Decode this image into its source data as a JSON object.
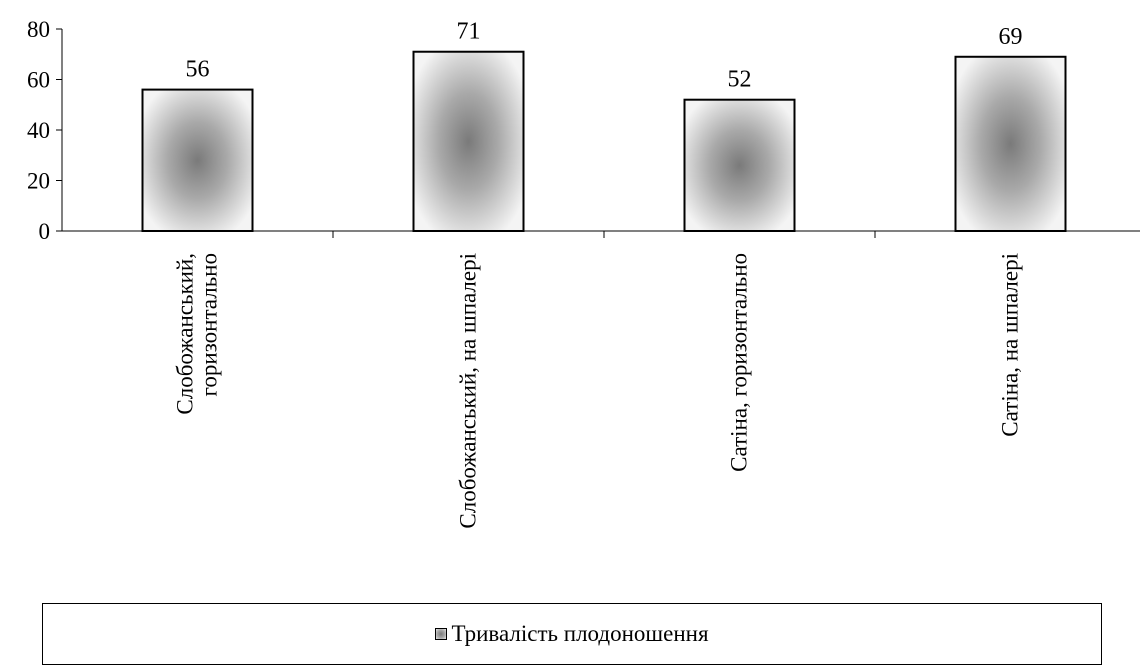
{
  "chart_data": {
    "type": "bar",
    "categories": [
      [
        "Слобожанський,",
        "горизонтально"
      ],
      [
        "Слобожанський, на шпалері"
      ],
      [
        "Сатіна, горизонтально"
      ],
      [
        "Сатіна, на шпалері"
      ]
    ],
    "series": [
      {
        "name": "Тривалість плодоношення",
        "values": [
          56,
          71,
          52,
          69
        ]
      }
    ],
    "data_labels": [
      "56",
      "71",
      "52",
      "69"
    ],
    "ylim": [
      0,
      80
    ],
    "yticks": [
      "0",
      "20",
      "40",
      "60",
      "80"
    ],
    "grid": false,
    "legend_position": "bottom",
    "colors": {
      "bar_border": "#000000",
      "bar_center": "#7a7a7a",
      "bar_edge": "#f2f2f2"
    }
  }
}
